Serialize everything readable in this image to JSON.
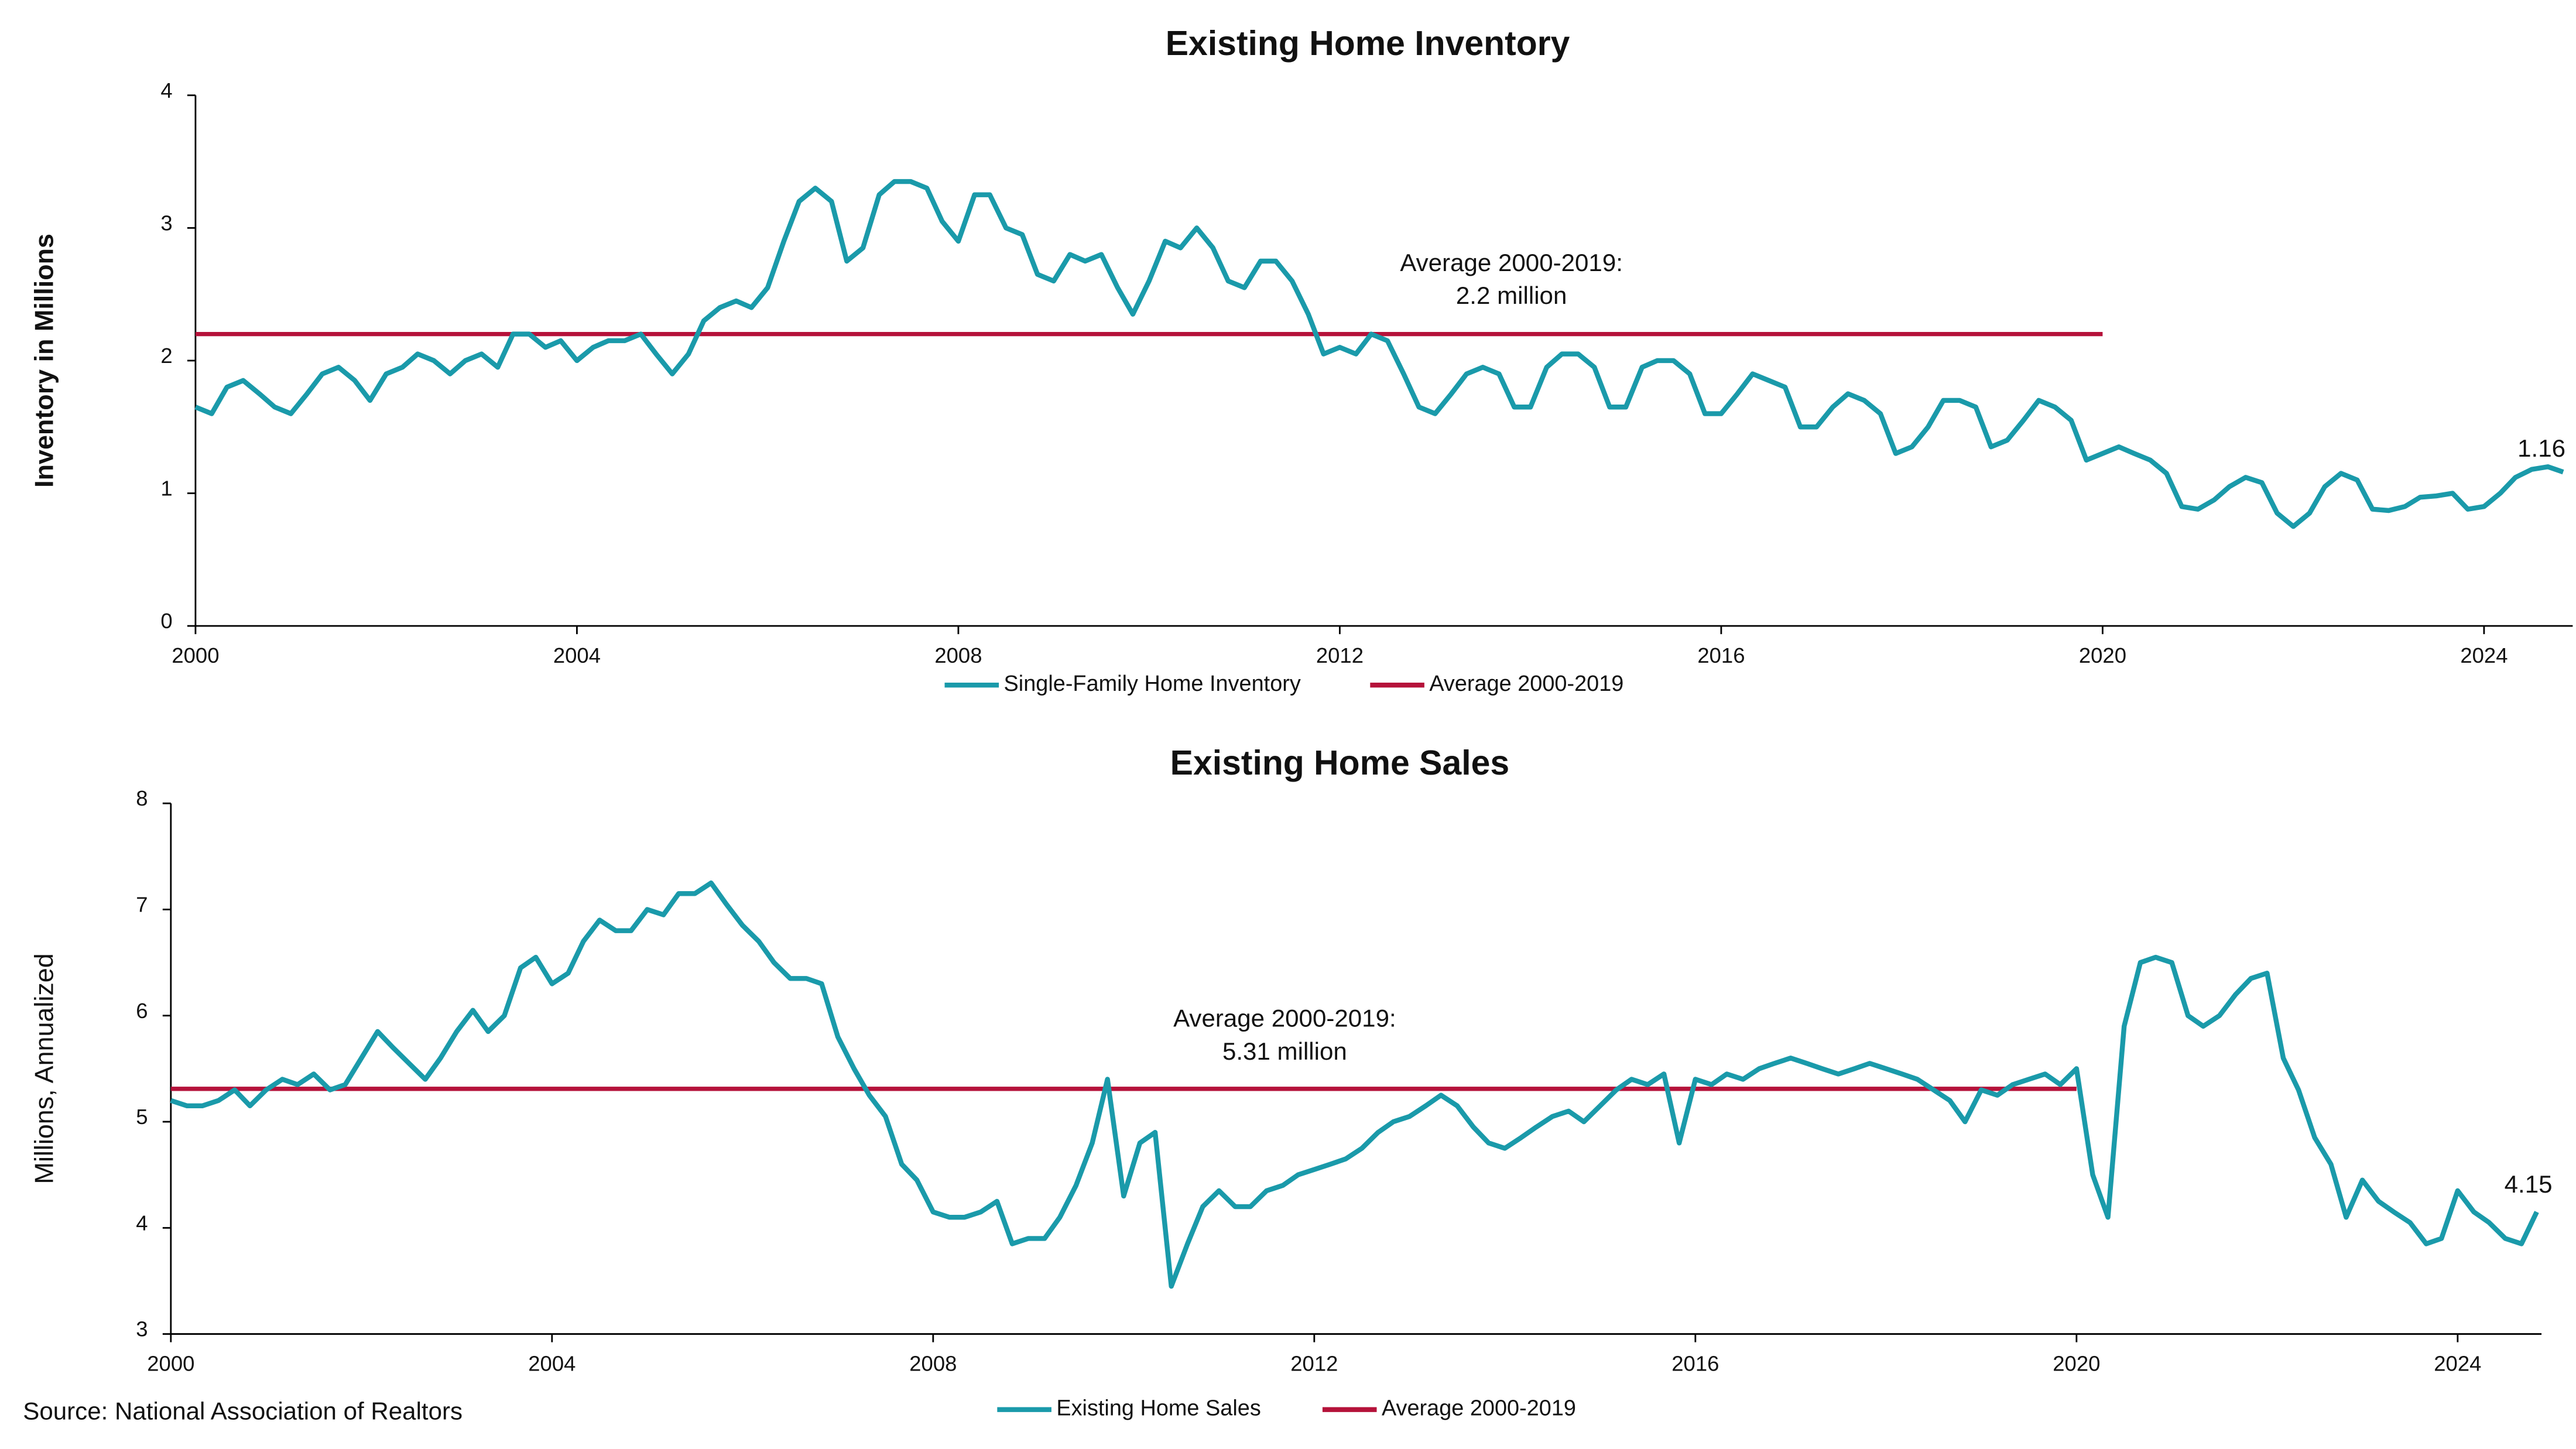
{
  "source": "Source: National Association of Realtors",
  "chart_data": [
    {
      "type": "line",
      "title": "Existing Home Inventory",
      "y_label": "Inventory in Millions",
      "y_label_bold": true,
      "xlim": [
        2000,
        2024.93
      ],
      "xticks": [
        2000,
        2004,
        2008,
        2012,
        2016,
        2020,
        2024
      ],
      "ylim": [
        0,
        4
      ],
      "yticks": [
        0,
        1,
        2,
        3,
        4
      ],
      "annotation": [
        "Average 2000-2019:",
        "2.2 million"
      ],
      "series": [
        {
          "name": "Single-Family Home Inventory",
          "color": "#1a9aaa",
          "x": [
            2000,
            2000.17,
            2000.33,
            2000.5,
            2000.67,
            2000.83,
            2001,
            2001.17,
            2001.33,
            2001.5,
            2001.67,
            2001.83,
            2002,
            2002.17,
            2002.33,
            2002.5,
            2002.67,
            2002.83,
            2003,
            2003.17,
            2003.33,
            2003.5,
            2003.67,
            2003.83,
            2004,
            2004.17,
            2004.33,
            2004.5,
            2004.67,
            2004.83,
            2005,
            2005.17,
            2005.33,
            2005.5,
            2005.67,
            2005.83,
            2006,
            2006.17,
            2006.33,
            2006.5,
            2006.67,
            2006.83,
            2007,
            2007.17,
            2007.33,
            2007.5,
            2007.67,
            2007.83,
            2008,
            2008.17,
            2008.33,
            2008.5,
            2008.67,
            2008.83,
            2009,
            2009.17,
            2009.33,
            2009.5,
            2009.67,
            2009.83,
            2010,
            2010.17,
            2010.33,
            2010.5,
            2010.67,
            2010.83,
            2011,
            2011.17,
            2011.33,
            2011.5,
            2011.67,
            2011.83,
            2012,
            2012.17,
            2012.33,
            2012.5,
            2012.67,
            2012.83,
            2013,
            2013.17,
            2013.33,
            2013.5,
            2013.67,
            2013.83,
            2014,
            2014.17,
            2014.33,
            2014.5,
            2014.67,
            2014.83,
            2015,
            2015.17,
            2015.33,
            2015.5,
            2015.67,
            2015.83,
            2016,
            2016.17,
            2016.33,
            2016.5,
            2016.67,
            2016.83,
            2017,
            2017.17,
            2017.33,
            2017.5,
            2017.67,
            2017.83,
            2018,
            2018.17,
            2018.33,
            2018.5,
            2018.67,
            2018.83,
            2019,
            2019.17,
            2019.33,
            2019.5,
            2019.67,
            2019.83,
            2020,
            2020.17,
            2020.33,
            2020.5,
            2020.67,
            2020.83,
            2021,
            2021.17,
            2021.33,
            2021.5,
            2021.67,
            2021.83,
            2022,
            2022.17,
            2022.33,
            2022.5,
            2022.67,
            2022.83,
            2023,
            2023.17,
            2023.33,
            2023.5,
            2023.67,
            2023.83,
            2024,
            2024.17,
            2024.33,
            2024.5,
            2024.67,
            2024.83
          ],
          "values": [
            1.65,
            1.6,
            1.8,
            1.85,
            1.75,
            1.65,
            1.6,
            1.75,
            1.9,
            1.95,
            1.85,
            1.7,
            1.9,
            1.95,
            2.05,
            2.0,
            1.9,
            2.0,
            2.05,
            1.95,
            2.2,
            2.2,
            2.1,
            2.15,
            2.0,
            2.1,
            2.15,
            2.15,
            2.2,
            2.05,
            1.9,
            2.05,
            2.3,
            2.4,
            2.45,
            2.4,
            2.55,
            2.9,
            3.2,
            3.3,
            3.2,
            2.75,
            2.85,
            3.25,
            3.35,
            3.35,
            3.3,
            3.05,
            2.9,
            3.25,
            3.25,
            3.0,
            2.95,
            2.65,
            2.6,
            2.8,
            2.75,
            2.8,
            2.55,
            2.35,
            2.6,
            2.9,
            2.85,
            3.0,
            2.85,
            2.6,
            2.55,
            2.75,
            2.75,
            2.6,
            2.35,
            2.05,
            2.1,
            2.05,
            2.2,
            2.15,
            1.9,
            1.65,
            1.6,
            1.75,
            1.9,
            1.95,
            1.9,
            1.65,
            1.65,
            1.95,
            2.05,
            2.05,
            1.95,
            1.65,
            1.65,
            1.95,
            2.0,
            2.0,
            1.9,
            1.6,
            1.6,
            1.75,
            1.9,
            1.85,
            1.8,
            1.5,
            1.5,
            1.65,
            1.75,
            1.7,
            1.6,
            1.3,
            1.35,
            1.5,
            1.7,
            1.7,
            1.65,
            1.35,
            1.4,
            1.55,
            1.7,
            1.65,
            1.55,
            1.25,
            1.3,
            1.35,
            1.3,
            1.25,
            1.15,
            0.9,
            0.88,
            0.95,
            1.05,
            1.12,
            1.08,
            0.85,
            0.75,
            0.85,
            1.05,
            1.15,
            1.1,
            0.88,
            0.87,
            0.9,
            0.97,
            0.98,
            1.0,
            0.88,
            0.9,
            1.0,
            1.12,
            1.18,
            1.2,
            1.16
          ]
        },
        {
          "name": "Average 2000-2019",
          "color": "#b5123a",
          "x": [
            2000,
            2020
          ],
          "values": [
            2.2,
            2.2
          ]
        }
      ]
    },
    {
      "type": "line",
      "title": "Existing Home Sales",
      "y_label": "Millions, Annualized",
      "y_label_bold": false,
      "xlim": [
        2000,
        2024.88
      ],
      "xticks": [
        2000,
        2004,
        2008,
        2012,
        2016,
        2020,
        2024
      ],
      "ylim": [
        3,
        8
      ],
      "yticks": [
        3,
        4,
        5,
        6,
        7,
        8
      ],
      "annotation": [
        "Average 2000-2019:",
        "5.31 million"
      ],
      "series": [
        {
          "name": "Existing Home Sales",
          "color": "#1a9aaa",
          "x": [
            2000,
            2000.17,
            2000.33,
            2000.5,
            2000.67,
            2000.83,
            2001,
            2001.17,
            2001.33,
            2001.5,
            2001.67,
            2001.83,
            2002,
            2002.17,
            2002.33,
            2002.5,
            2002.67,
            2002.83,
            2003,
            2003.17,
            2003.33,
            2003.5,
            2003.67,
            2003.83,
            2004,
            2004.17,
            2004.33,
            2004.5,
            2004.67,
            2004.83,
            2005,
            2005.17,
            2005.33,
            2005.5,
            2005.67,
            2005.83,
            2006,
            2006.17,
            2006.33,
            2006.5,
            2006.67,
            2006.83,
            2007,
            2007.17,
            2007.33,
            2007.5,
            2007.67,
            2007.83,
            2008,
            2008.17,
            2008.33,
            2008.5,
            2008.67,
            2008.83,
            2009,
            2009.17,
            2009.33,
            2009.5,
            2009.67,
            2009.83,
            2010,
            2010.17,
            2010.33,
            2010.5,
            2010.67,
            2010.83,
            2011,
            2011.17,
            2011.33,
            2011.5,
            2011.67,
            2011.83,
            2012,
            2012.17,
            2012.33,
            2012.5,
            2012.67,
            2012.83,
            2013,
            2013.17,
            2013.33,
            2013.5,
            2013.67,
            2013.83,
            2014,
            2014.17,
            2014.33,
            2014.5,
            2014.67,
            2014.83,
            2015,
            2015.17,
            2015.33,
            2015.5,
            2015.67,
            2015.83,
            2016,
            2016.17,
            2016.33,
            2016.5,
            2016.67,
            2016.83,
            2017,
            2017.17,
            2017.33,
            2017.5,
            2017.67,
            2017.83,
            2018,
            2018.17,
            2018.33,
            2018.5,
            2018.67,
            2018.83,
            2019,
            2019.17,
            2019.33,
            2019.5,
            2019.67,
            2019.83,
            2020,
            2020.17,
            2020.33,
            2020.5,
            2020.67,
            2020.83,
            2021,
            2021.17,
            2021.33,
            2021.5,
            2021.67,
            2021.83,
            2022,
            2022.17,
            2022.33,
            2022.5,
            2022.67,
            2022.83,
            2023,
            2023.17,
            2023.33,
            2023.5,
            2023.67,
            2023.83,
            2024,
            2024.17,
            2024.33,
            2024.5,
            2024.67,
            2024.83
          ],
          "values": [
            5.2,
            5.15,
            5.15,
            5.2,
            5.3,
            5.15,
            5.3,
            5.4,
            5.35,
            5.45,
            5.3,
            5.35,
            5.6,
            5.85,
            5.7,
            5.55,
            5.4,
            5.6,
            5.85,
            6.05,
            5.85,
            6.0,
            6.45,
            6.55,
            6.3,
            6.4,
            6.7,
            6.9,
            6.8,
            6.8,
            7.0,
            6.95,
            7.15,
            7.15,
            7.25,
            7.05,
            6.85,
            6.7,
            6.5,
            6.35,
            6.35,
            6.3,
            5.8,
            5.5,
            5.25,
            5.05,
            4.6,
            4.45,
            4.15,
            4.1,
            4.1,
            4.15,
            4.25,
            3.85,
            3.9,
            3.9,
            4.1,
            4.4,
            4.8,
            5.4,
            4.3,
            4.8,
            4.9,
            3.45,
            3.85,
            4.2,
            4.35,
            4.2,
            4.2,
            4.35,
            4.4,
            4.5,
            4.55,
            4.6,
            4.65,
            4.75,
            4.9,
            5.0,
            5.05,
            5.15,
            5.25,
            5.15,
            4.95,
            4.8,
            4.75,
            4.85,
            4.95,
            5.05,
            5.1,
            5.0,
            5.15,
            5.3,
            5.4,
            5.35,
            5.45,
            4.8,
            5.4,
            5.35,
            5.45,
            5.4,
            5.5,
            5.55,
            5.6,
            5.55,
            5.5,
            5.45,
            5.5,
            5.55,
            5.5,
            5.45,
            5.4,
            5.3,
            5.2,
            5.0,
            5.3,
            5.25,
            5.35,
            5.4,
            5.45,
            5.35,
            5.5,
            4.5,
            4.1,
            5.9,
            6.5,
            6.55,
            6.5,
            6.0,
            5.9,
            6.0,
            6.2,
            6.35,
            6.4,
            5.6,
            5.3,
            4.85,
            4.6,
            4.1,
            4.45,
            4.25,
            4.15,
            4.05,
            3.85,
            3.9,
            4.35,
            4.15,
            4.05,
            3.9,
            3.85,
            4.15
          ]
        },
        {
          "name": "Average 2000-2019",
          "color": "#b5123a",
          "x": [
            2000,
            2020
          ],
          "values": [
            5.31,
            5.31
          ]
        }
      ]
    }
  ]
}
